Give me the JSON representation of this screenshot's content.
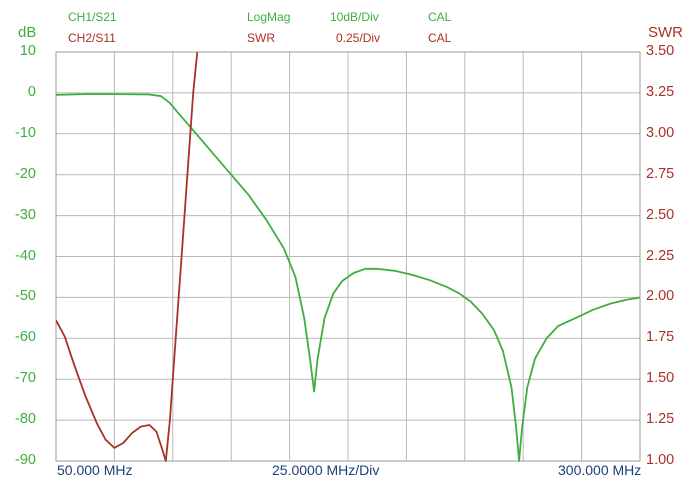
{
  "header": {
    "ch1": "CH1/S21",
    "ch1_format": "LogMag",
    "ch1_scale": "10dB/Div",
    "ch1_cal": "CAL",
    "ch2": "CH2/S11",
    "ch2_format": "SWR",
    "ch2_scale": "0.25/Div",
    "ch2_cal": "CAL"
  },
  "colors": {
    "ch1": "#3fae3f",
    "ch2": "#a83228",
    "grid": "#b8b8b8",
    "xaxis": "#1f3f7a"
  },
  "chart_data": {
    "type": "line",
    "grid": true,
    "x_divisions": 10,
    "left_axis": {
      "label": "dB",
      "range": [
        -90,
        10
      ],
      "ticks": [
        "10",
        "0",
        "-10",
        "-20",
        "-30",
        "-40",
        "-50",
        "-60",
        "-70",
        "-80",
        "-90"
      ]
    },
    "right_axis": {
      "label": "SWR",
      "range": [
        1.0,
        3.5
      ],
      "ticks": [
        "3.50",
        "3.25",
        "3.00",
        "2.75",
        "2.50",
        "2.25",
        "2.00",
        "1.75",
        "1.50",
        "1.25",
        "1.00"
      ]
    },
    "x_labels": {
      "start": "50.000 MHz",
      "scale": "25.0000 MHz/Div",
      "stop": "300.000 MHz"
    },
    "series": [
      {
        "name": "CH1/S21",
        "axis": "left",
        "points": [
          [
            0,
            -0.5
          ],
          [
            0.5,
            -0.3
          ],
          [
            1.0,
            -0.3
          ],
          [
            1.6,
            -0.4
          ],
          [
            1.8,
            -0.8
          ],
          [
            1.95,
            -2.5
          ],
          [
            2.1,
            -5
          ],
          [
            2.4,
            -10
          ],
          [
            2.7,
            -15
          ],
          [
            3.0,
            -20
          ],
          [
            3.3,
            -25
          ],
          [
            3.6,
            -31
          ],
          [
            3.9,
            -38
          ],
          [
            4.1,
            -45
          ],
          [
            4.25,
            -55
          ],
          [
            4.35,
            -65
          ],
          [
            4.42,
            -73
          ],
          [
            4.48,
            -65
          ],
          [
            4.6,
            -55
          ],
          [
            4.75,
            -49
          ],
          [
            4.9,
            -46
          ],
          [
            5.1,
            -44
          ],
          [
            5.3,
            -43
          ],
          [
            5.5,
            -43
          ],
          [
            5.8,
            -43.5
          ],
          [
            6.1,
            -44.5
          ],
          [
            6.4,
            -45.8
          ],
          [
            6.7,
            -47.5
          ],
          [
            6.9,
            -49
          ],
          [
            7.1,
            -51
          ],
          [
            7.3,
            -54
          ],
          [
            7.5,
            -58
          ],
          [
            7.65,
            -63
          ],
          [
            7.8,
            -72
          ],
          [
            7.88,
            -82
          ],
          [
            7.93,
            -90
          ],
          [
            7.98,
            -82
          ],
          [
            8.07,
            -72
          ],
          [
            8.2,
            -65
          ],
          [
            8.4,
            -60
          ],
          [
            8.6,
            -57
          ],
          [
            8.9,
            -55
          ],
          [
            9.2,
            -53
          ],
          [
            9.5,
            -51.5
          ],
          [
            9.8,
            -50.5
          ],
          [
            10.1,
            -49.8
          ],
          [
            10.5,
            -49.2
          ],
          [
            10.8,
            -48.9
          ]
        ]
      },
      {
        "name": "CH2/S11",
        "axis": "right",
        "points": [
          [
            0,
            1.86
          ],
          [
            0.15,
            1.76
          ],
          [
            0.3,
            1.6
          ],
          [
            0.5,
            1.4
          ],
          [
            0.7,
            1.23
          ],
          [
            0.85,
            1.13
          ],
          [
            1.0,
            1.08
          ],
          [
            1.15,
            1.11
          ],
          [
            1.3,
            1.17
          ],
          [
            1.45,
            1.21
          ],
          [
            1.6,
            1.22
          ],
          [
            1.72,
            1.18
          ],
          [
            1.82,
            1.07
          ],
          [
            1.88,
            1.0
          ],
          [
            1.95,
            1.25
          ],
          [
            2.05,
            1.75
          ],
          [
            2.15,
            2.25
          ],
          [
            2.25,
            2.75
          ],
          [
            2.35,
            3.25
          ],
          [
            2.42,
            3.5
          ]
        ]
      }
    ]
  }
}
